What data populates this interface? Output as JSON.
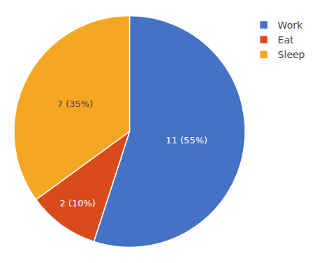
{
  "chart_data": {
    "type": "pie",
    "categories": [
      "Work",
      "Eat",
      "Sleep"
    ],
    "values": [
      11,
      2,
      7
    ],
    "value_labels": [
      "11 (55%)",
      "2 (10%)",
      "7 (35%)"
    ],
    "colors": [
      "#4472C4",
      "#D94B1A",
      "#F5A623"
    ],
    "data_labels": true,
    "legend": "right"
  }
}
